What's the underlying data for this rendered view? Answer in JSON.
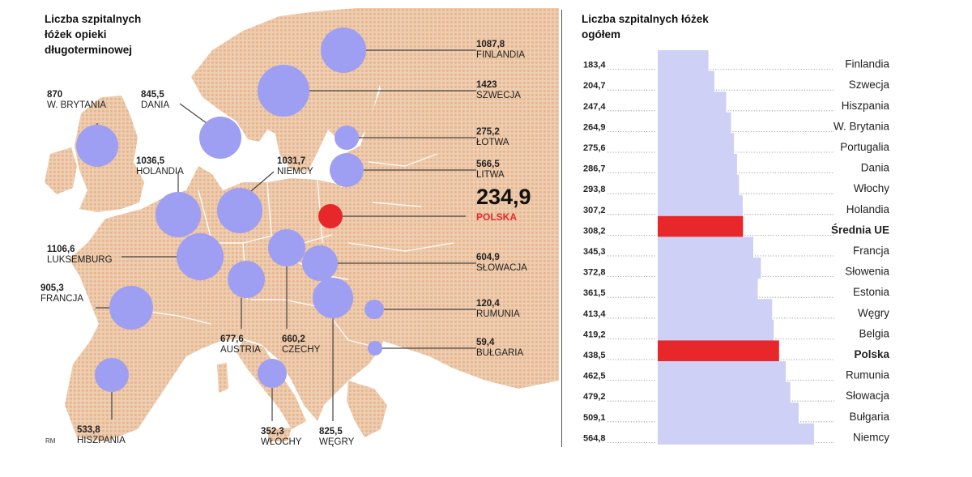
{
  "colors": {
    "map_land": "#eecfb3",
    "map_dots": "#e8b690",
    "bubble": "#9e9ef2",
    "highlight": "#e8272b",
    "bar_fill": "#cfd0f6",
    "leader": "#444444"
  },
  "map": {
    "title": "Liczba szpitalnych\nłóżek opieki\ndługoterminowej",
    "credit": "RM",
    "highlight_label": "234,9",
    "highlight_country": "POLSKA",
    "bubbles": [
      {
        "country": "FINLANDIA",
        "value": "1087,8"
      },
      {
        "country": "SZWECJA",
        "value": "1423"
      },
      {
        "country": "ŁOTWA",
        "value": "275,2"
      },
      {
        "country": "LITWA",
        "value": "566,5"
      },
      {
        "country": "POLSKA",
        "value": "234,9"
      },
      {
        "country": "SŁOWACJA",
        "value": "604,9"
      },
      {
        "country": "RUMUNIA",
        "value": "120,4"
      },
      {
        "country": "BUŁGARIA",
        "value": "59,4"
      },
      {
        "country": "W. BRYTANIA",
        "value": "870"
      },
      {
        "country": "DANIA",
        "value": "845,5"
      },
      {
        "country": "HOLANDIA",
        "value": "1036,5"
      },
      {
        "country": "NIEMCY",
        "value": "1031,7"
      },
      {
        "country": "LUKSEMBURG",
        "value": "1106,6"
      },
      {
        "country": "FRANCJA",
        "value": "905,3"
      },
      {
        "country": "AUSTRIA",
        "value": "677,6"
      },
      {
        "country": "CZECHY",
        "value": "660,2"
      },
      {
        "country": "WĘGRY",
        "value": "825,5"
      },
      {
        "country": "WŁOCHY",
        "value": "352,3"
      },
      {
        "country": "HISZPANIA",
        "value": "533,8"
      }
    ]
  },
  "chart_data": {
    "type": "bar",
    "orientation": "horizontal",
    "title": "Liczba szpitalnych łóżek\nogółem",
    "categories": [
      "Finlandia",
      "Szwecja",
      "Hiszpania",
      "W. Brytania",
      "Portugalia",
      "Dania",
      "Włochy",
      "Holandia",
      "Średnia UE",
      "Francja",
      "Słowenia",
      "Estonia",
      "Węgry",
      "Belgia",
      "Polska",
      "Rumunia",
      "Słowacja",
      "Bułgaria",
      "Niemcy"
    ],
    "value_labels": [
      "183,4",
      "204,7",
      "247,4",
      "264,9",
      "275,6",
      "286,7",
      "293,8",
      "307,2",
      "308,2",
      "345,3",
      "372,8",
      "361,5",
      "413,4",
      "419,2",
      "438,5",
      "462,5",
      "479,2",
      "509,1",
      "564,8"
    ],
    "values": [
      183.4,
      204.7,
      247.4,
      264.9,
      275.6,
      286.7,
      293.8,
      307.2,
      308.2,
      345.3,
      372.8,
      361.5,
      413.4,
      419.2,
      438.5,
      462.5,
      479.2,
      509.1,
      564.8
    ],
    "highlighted": [
      "Średnia UE",
      "Polska"
    ]
  }
}
